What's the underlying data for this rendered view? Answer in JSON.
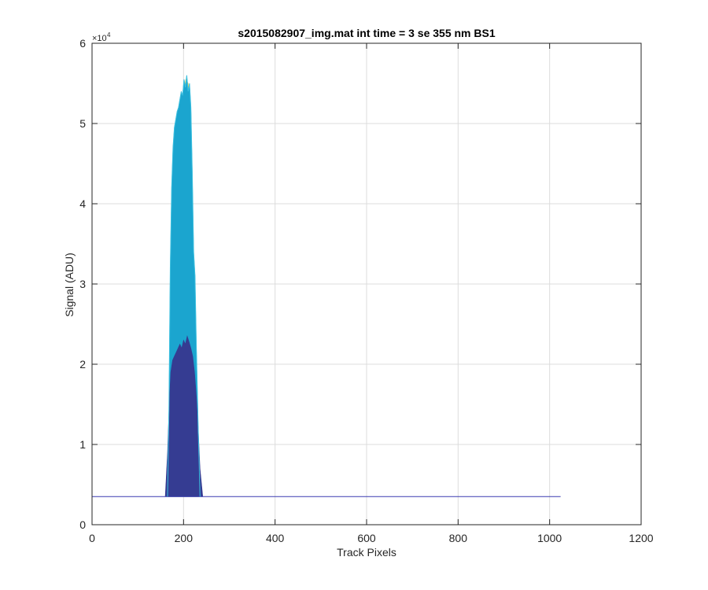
{
  "chart_data": {
    "type": "area",
    "title": "s2015082907_img.mat int time = 3 se  355 nm BS1",
    "xlabel": "Track Pixels",
    "ylabel": "Signal (ADU)",
    "xlim": [
      0,
      1200
    ],
    "ylim": [
      0,
      60000
    ],
    "x_ticks": [
      "0",
      "200",
      "400",
      "600",
      "800",
      "1000",
      "1200"
    ],
    "y_ticks": [
      "0",
      "1",
      "2",
      "3",
      "4",
      "5",
      "6"
    ],
    "y_exponent_base": "×10",
    "y_exponent_power": "4",
    "grid": true,
    "colors": {
      "baseline": "#3a3ab0",
      "dark_blue": "#353c92",
      "cyan": "#1ba5cf",
      "cyan_light": "#3cc0e0",
      "yellow": "#e8c229"
    },
    "series": [
      {
        "color_key": "yellow",
        "x": [
          168,
          172,
          180,
          190,
          198,
          205,
          210,
          216,
          222,
          232
        ],
        "y": [
          3500,
          30000,
          46000,
          50000,
          53000,
          55500,
          55000,
          52000,
          30000,
          3500
        ]
      },
      {
        "color_key": "cyan",
        "x": [
          165,
          168,
          171,
          174,
          177,
          180,
          183,
          186,
          189,
          192,
          195,
          198,
          201,
          204,
          207,
          210,
          213,
          216,
          219,
          222,
          225,
          228,
          232,
          236
        ],
        "y": [
          3500,
          14000,
          32000,
          42000,
          47000,
          49500,
          50500,
          51500,
          52000,
          53000,
          54000,
          53500,
          55500,
          54500,
          56000,
          54000,
          55000,
          52000,
          44000,
          34000,
          31000,
          22000,
          12000,
          3500
        ]
      },
      {
        "color_key": "dark_blue",
        "x": [
          160,
          165,
          168,
          172,
          176,
          180,
          184,
          188,
          192,
          196,
          200,
          204,
          208,
          212,
          216,
          220,
          224,
          228,
          232,
          236,
          242
        ],
        "y": [
          3500,
          9000,
          14000,
          19000,
          20500,
          21000,
          21500,
          22000,
          22500,
          22000,
          23000,
          22500,
          23500,
          22800,
          22000,
          21000,
          19000,
          16000,
          12000,
          7000,
          3500
        ]
      },
      {
        "color_key": "baseline",
        "x": [
          0,
          160,
          240,
          1024
        ],
        "y": [
          3500,
          3500,
          3500,
          3500
        ]
      }
    ]
  }
}
